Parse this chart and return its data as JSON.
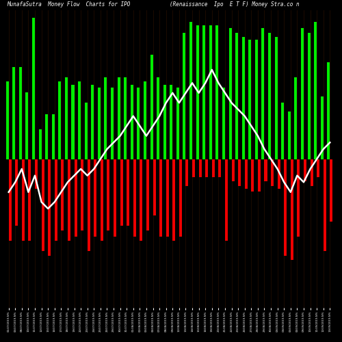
{
  "title_left": "MunafaSutra  Money Flow  Charts for IPO",
  "title_right": "(Renaissance  Ipo  E T F) Money Stra.co n",
  "background_color": "#000000",
  "categories": [
    "01/07/2019-N%",
    "05/07/2019-N%",
    "08/07/2019-N%",
    "10/07/2019-N%",
    "11/07/2019-N%",
    "12/07/2019-N%",
    "15/07/2019-N%",
    "16/07/2019-N%",
    "17/07/2019-N%",
    "18/07/2019-N%",
    "19/07/2019-N%",
    "22/07/2019-N%",
    "23/07/2019-N%",
    "24/07/2019-N%",
    "25/07/2019-N%",
    "26/07/2019-N%",
    "29/07/2019-N%",
    "30/07/2019-N%",
    "31/07/2019-N%",
    "01/08/2019-N%",
    "02/08/2019-N%",
    "05/08/2019-N%",
    "06/08/2019-N%",
    "07/08/2019-N%",
    "08/08/2019-N%",
    "09/08/2019-N%",
    "12/08/2019-N%",
    "13/08/2019-N%",
    "14/08/2019-N%",
    "15/08/2019-N%",
    "16/08/2019-N%",
    "19/08/2019-N%",
    "20/08/2019-N%",
    "21/08/2019-N%",
    "22/08/2019-N%",
    "23/08/2019-N%",
    "26/08/2019-N%",
    "27/08/2019-N%",
    "28/08/2019-N%",
    "29/08/2019-N%",
    "30/08/2019-N%",
    "03/09/2019-N%",
    "04/09/2019-N%",
    "05/09/2019-N%",
    "06/09/2019-N%",
    "09/09/2019-N%",
    "10/09/2019-N%",
    "11/09/2019-N%",
    "12/09/2019-N%",
    "13/09/2019-N%"
  ],
  "inflow": [
    52,
    62,
    62,
    45,
    95,
    20,
    30,
    30,
    52,
    55,
    50,
    52,
    38,
    50,
    48,
    55,
    48,
    55,
    55,
    50,
    48,
    52,
    70,
    55,
    50,
    50,
    48,
    85,
    92,
    90,
    90,
    90,
    90,
    48,
    88,
    85,
    82,
    80,
    80,
    88,
    85,
    82,
    38,
    32,
    55,
    88,
    85,
    92,
    42,
    65
  ],
  "outflow": [
    -55,
    -45,
    -55,
    -55,
    -20,
    -62,
    -65,
    -55,
    -48,
    -55,
    -52,
    -48,
    -62,
    -52,
    -55,
    -48,
    -52,
    -45,
    -45,
    -52,
    -55,
    -48,
    -38,
    -52,
    -52,
    -55,
    -52,
    -18,
    -12,
    -12,
    -12,
    -12,
    -12,
    -55,
    -15,
    -18,
    -20,
    -22,
    -22,
    -15,
    -18,
    -20,
    -65,
    -68,
    -52,
    -15,
    -18,
    -12,
    -62,
    -42
  ],
  "line_values": [
    36.5,
    36.8,
    37.2,
    36.5,
    37.0,
    36.2,
    36.0,
    36.2,
    36.5,
    36.8,
    37.0,
    37.2,
    37.0,
    37.2,
    37.5,
    37.8,
    38.0,
    38.2,
    38.5,
    38.8,
    38.5,
    38.2,
    38.5,
    38.8,
    39.2,
    39.5,
    39.2,
    39.5,
    39.8,
    39.5,
    39.8,
    40.2,
    39.8,
    39.5,
    39.2,
    39.0,
    38.8,
    38.5,
    38.2,
    37.8,
    37.5,
    37.2,
    36.8,
    36.5,
    37.0,
    36.8,
    37.2,
    37.5,
    37.8,
    38.0
  ],
  "green_color": "#00ee00",
  "red_color": "#ee0000",
  "dark_green": "#003300",
  "dark_red": "#330000",
  "line_color": "#ffffff",
  "text_color": "#ffffff",
  "ylim": [
    -100,
    100
  ],
  "line_ylim": [
    33,
    42
  ]
}
